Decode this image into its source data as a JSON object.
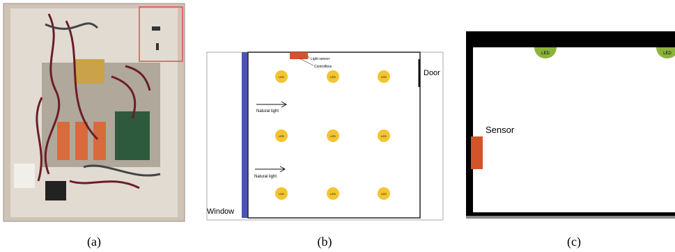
{
  "panel_a": {
    "caption": "(a)"
  },
  "panel_b": {
    "caption": "(b)",
    "light_sensor": "Light sensor",
    "control_box": "Controllbox",
    "door": "Door",
    "window": "Window",
    "natural_light": [
      "Natural light",
      "Natural light"
    ],
    "leds": [
      "LED",
      "LED",
      "LED",
      "LED",
      "LED",
      "LED",
      "LED",
      "LED",
      "LED"
    ]
  },
  "panel_c": {
    "caption": "(c)",
    "sensor": "Sensor",
    "leds": [
      "LED",
      "LED"
    ]
  }
}
